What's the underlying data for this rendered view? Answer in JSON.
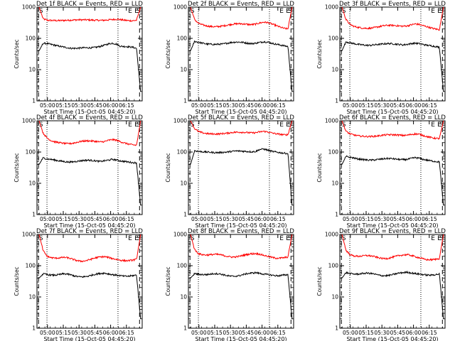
{
  "chart_data": [
    {
      "type": "line",
      "title": "Det 1f BLACK = Events, RED = LLD",
      "xlabel": "Start Time (15-Oct-05 04:45:20)",
      "ylabel": "Counts/sec",
      "yscale": "log",
      "ylim": [
        1,
        1000
      ],
      "yticks": [
        "1",
        "10",
        "100",
        "1000"
      ],
      "xticks": [
        "05:00",
        "05:15",
        "05:30",
        "05:45",
        "06:00",
        "06:15"
      ],
      "markers": [
        "S",
        "E",
        "E",
        "S"
      ],
      "series": [
        {
          "color": "#ff0000",
          "values": [
            1000,
            420,
            380,
            375,
            372,
            370,
            375,
            380,
            385,
            390,
            392,
            392,
            390,
            385,
            380,
            378,
            380,
            390,
            400,
            410,
            400,
            380,
            370,
            365,
            380,
            1000
          ]
        },
        {
          "color": "#000000",
          "values": [
            40,
            70,
            68,
            64,
            60,
            56,
            53,
            50,
            48,
            48,
            49,
            50,
            50,
            50,
            52,
            55,
            60,
            66,
            70,
            66,
            56,
            55,
            54,
            52,
            48,
            2
          ]
        }
      ]
    },
    {
      "type": "line",
      "title": "Det 2f BLACK = Events, RED = LLD",
      "xlabel": "Start Time (15-Oct-05 04:45:20)",
      "ylabel": "Counts/sec",
      "yscale": "log",
      "ylim": [
        1,
        1000
      ],
      "yticks": [
        "1",
        "10",
        "100",
        "1000"
      ],
      "xticks": [
        "05:00",
        "05:15",
        "05:30",
        "05:45",
        "06:00",
        "06:15"
      ],
      "markers": [
        "S",
        "E",
        "E",
        "S"
      ],
      "series": [
        {
          "color": "#ff0000",
          "values": [
            1000,
            400,
            300,
            270,
            250,
            240,
            235,
            240,
            250,
            265,
            280,
            290,
            295,
            290,
            280,
            275,
            285,
            310,
            330,
            320,
            290,
            260,
            230,
            210,
            200,
            1000
          ]
        },
        {
          "color": "#000000",
          "values": [
            40,
            80,
            75,
            70,
            66,
            65,
            64,
            65,
            66,
            70,
            74,
            76,
            76,
            74,
            70,
            68,
            70,
            74,
            78,
            76,
            70,
            65,
            62,
            58,
            55,
            2
          ]
        }
      ]
    },
    {
      "type": "line",
      "title": "Det 3f BLACK = Events, RED = LLD",
      "xlabel": "Start Time (15-Oct-05 04:45:20)",
      "ylabel": "Counts/sec",
      "yscale": "log",
      "ylim": [
        1,
        1000
      ],
      "yticks": [
        "1",
        "10",
        "100",
        "1000"
      ],
      "xticks": [
        "05:00",
        "05:15",
        "05:30",
        "05:45",
        "06:00",
        "06:15"
      ],
      "markers": [
        "S",
        "E",
        "E",
        "S"
      ],
      "series": [
        {
          "color": "#ff0000",
          "values": [
            1000,
            400,
            280,
            240,
            225,
            215,
            210,
            212,
            220,
            235,
            250,
            260,
            262,
            258,
            250,
            245,
            250,
            270,
            290,
            280,
            255,
            235,
            215,
            200,
            190,
            1000
          ]
        },
        {
          "color": "#000000",
          "values": [
            40,
            78,
            72,
            68,
            64,
            62,
            60,
            60,
            62,
            64,
            66,
            68,
            68,
            66,
            64,
            62,
            64,
            68,
            70,
            68,
            64,
            60,
            58,
            55,
            52,
            2
          ]
        }
      ]
    },
    {
      "type": "line",
      "title": "Det 4f BLACK = Events, RED = LLD",
      "xlabel": "Start Time (15-Oct-05 04:45:20)",
      "ylabel": "Counts/sec",
      "yscale": "log",
      "ylim": [
        1,
        1000
      ],
      "yticks": [
        "1",
        "10",
        "100",
        "1000"
      ],
      "xticks": [
        "05:00",
        "05:15",
        "05:30",
        "05:45",
        "06:00",
        "06:15"
      ],
      "markers": [
        "S",
        "E",
        "E",
        "S"
      ],
      "series": [
        {
          "color": "#ff0000",
          "values": [
            1000,
            400,
            280,
            230,
            210,
            200,
            190,
            185,
            188,
            200,
            215,
            225,
            228,
            225,
            218,
            210,
            215,
            235,
            250,
            240,
            215,
            195,
            180,
            170,
            165,
            1000
          ]
        },
        {
          "color": "#000000",
          "values": [
            40,
            65,
            60,
            58,
            55,
            52,
            50,
            48,
            48,
            50,
            52,
            54,
            55,
            54,
            52,
            50,
            52,
            55,
            58,
            56,
            52,
            50,
            48,
            46,
            45,
            2
          ]
        }
      ]
    },
    {
      "type": "line",
      "title": "Det 5f BLACK = Events, RED = LLD",
      "xlabel": "Start Time (15-Oct-05 04:45:20)",
      "ylabel": "Counts/sec",
      "yscale": "log",
      "ylim": [
        1,
        1000
      ],
      "yticks": [
        "1",
        "10",
        "100",
        "1000"
      ],
      "xticks": [
        "05:00",
        "05:15",
        "05:30",
        "05:45",
        "06:00",
        "06:15"
      ],
      "markers": [
        "S",
        "E",
        "E",
        "S"
      ],
      "series": [
        {
          "color": "#ff0000",
          "values": [
            1000,
            560,
            450,
            410,
            390,
            380,
            378,
            380,
            390,
            400,
            420,
            430,
            432,
            428,
            420,
            410,
            415,
            440,
            460,
            440,
            410,
            385,
            370,
            355,
            360,
            1000
          ]
        },
        {
          "color": "#000000",
          "values": [
            40,
            110,
            105,
            102,
            100,
            98,
            96,
            96,
            98,
            100,
            104,
            108,
            108,
            106,
            104,
            102,
            104,
            120,
            125,
            115,
            105,
            100,
            96,
            92,
            90,
            2
          ]
        }
      ]
    },
    {
      "type": "line",
      "title": "Det 6f BLACK = Events, RED = LLD",
      "xlabel": "Start Time (15-Oct-05 04:45:20)",
      "ylabel": "Counts/sec",
      "yscale": "log",
      "ylim": [
        1,
        1000
      ],
      "yticks": [
        "1",
        "10",
        "100",
        "1000"
      ],
      "xticks": [
        "05:00",
        "05:15",
        "05:30",
        "05:45",
        "06:00",
        "06:15"
      ],
      "markers": [
        "S",
        "E",
        "E",
        "S"
      ],
      "series": [
        {
          "color": "#ff0000",
          "values": [
            1000,
            460,
            380,
            350,
            330,
            320,
            315,
            315,
            320,
            330,
            345,
            355,
            358,
            355,
            348,
            340,
            345,
            365,
            380,
            370,
            340,
            310,
            290,
            275,
            270,
            1000
          ]
        },
        {
          "color": "#000000",
          "values": [
            40,
            72,
            68,
            64,
            60,
            58,
            56,
            55,
            56,
            58,
            60,
            62,
            62,
            60,
            58,
            57,
            58,
            62,
            66,
            64,
            58,
            55,
            52,
            50,
            48,
            2
          ]
        }
      ]
    },
    {
      "type": "line",
      "title": "Det 7f BLACK = Events, RED = LLD",
      "xlabel": "Start Time (15-Oct-05 04:45:20)",
      "ylabel": "Counts/sec",
      "yscale": "log",
      "ylim": [
        1,
        1000
      ],
      "yticks": [
        "1",
        "10",
        "100",
        "1000"
      ],
      "xticks": [
        "05:00",
        "05:15",
        "05:30",
        "05:45",
        "06:00",
        "06:15"
      ],
      "markers": [
        "S",
        "E",
        "E",
        "S"
      ],
      "series": [
        {
          "color": "#ff0000",
          "values": [
            1000,
            300,
            200,
            180,
            175,
            178,
            185,
            180,
            165,
            150,
            140,
            140,
            150,
            165,
            180,
            190,
            195,
            185,
            170,
            160,
            150,
            145,
            145,
            150,
            160,
            1000
          ]
        },
        {
          "color": "#000000",
          "values": [
            40,
            55,
            52,
            50,
            50,
            52,
            55,
            54,
            50,
            46,
            44,
            44,
            46,
            50,
            54,
            56,
            58,
            55,
            52,
            50,
            48,
            46,
            46,
            48,
            50,
            2
          ]
        }
      ]
    },
    {
      "type": "line",
      "title": "Det 8f BLACK = Events, RED = LLD",
      "xlabel": "Start Time (15-Oct-05 04:45:20)",
      "ylabel": "Counts/sec",
      "yscale": "log",
      "ylim": [
        1,
        1000
      ],
      "yticks": [
        "1",
        "10",
        "100",
        "1000"
      ],
      "xticks": [
        "05:00",
        "05:15",
        "05:30",
        "05:45",
        "06:00",
        "06:15"
      ],
      "markers": [
        "S",
        "E",
        "E",
        "S"
      ],
      "series": [
        {
          "color": "#ff0000",
          "values": [
            1000,
            330,
            240,
            225,
            220,
            225,
            232,
            228,
            215,
            200,
            190,
            190,
            200,
            215,
            230,
            240,
            245,
            235,
            215,
            200,
            185,
            175,
            175,
            180,
            190,
            1000
          ]
        },
        {
          "color": "#000000",
          "values": [
            40,
            56,
            53,
            52,
            52,
            54,
            56,
            55,
            52,
            48,
            46,
            46,
            48,
            52,
            56,
            58,
            60,
            57,
            54,
            52,
            50,
            48,
            48,
            50,
            52,
            2
          ]
        }
      ]
    },
    {
      "type": "line",
      "title": "Det 9f BLACK = Events, RED = LLD",
      "xlabel": "Start Time (15-Oct-05 04:45:20)",
      "ylabel": "Counts/sec",
      "yscale": "log",
      "ylim": [
        1,
        1000
      ],
      "yticks": [
        "1",
        "10",
        "100",
        "1000"
      ],
      "xticks": [
        "05:00",
        "05:15",
        "05:30",
        "05:45",
        "06:00",
        "06:15"
      ],
      "markers": [
        "S",
        "E",
        "E",
        "S"
      ],
      "series": [
        {
          "color": "#ff0000",
          "values": [
            1000,
            310,
            225,
            205,
            200,
            205,
            212,
            208,
            195,
            180,
            170,
            170,
            180,
            195,
            210,
            220,
            225,
            215,
            195,
            180,
            165,
            155,
            155,
            160,
            170,
            1000
          ]
        },
        {
          "color": "#000000",
          "values": [
            40,
            60,
            56,
            54,
            54,
            56,
            58,
            57,
            54,
            50,
            48,
            48,
            50,
            54,
            58,
            60,
            62,
            59,
            56,
            54,
            52,
            50,
            50,
            52,
            54,
            2
          ]
        }
      ]
    }
  ]
}
